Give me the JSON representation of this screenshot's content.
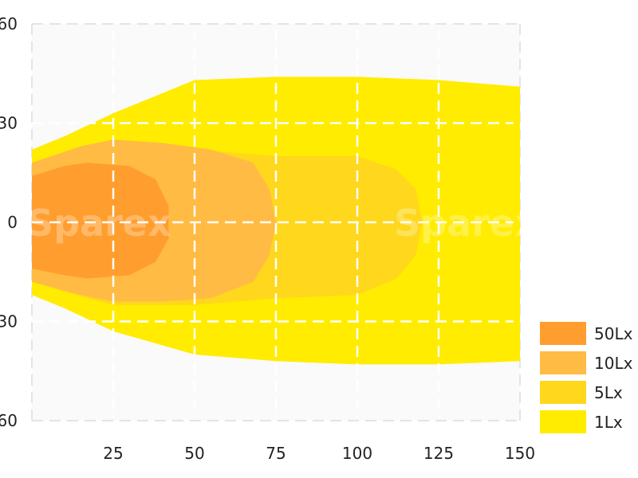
{
  "chart_data": {
    "type": "area",
    "title": "",
    "xlabel": "",
    "ylabel": "",
    "xlim": [
      0,
      150
    ],
    "ylim": [
      -60,
      60
    ],
    "x_ticks": [
      25,
      50,
      75,
      100,
      125,
      150
    ],
    "x_tick_labels": [
      "25",
      "50",
      "75",
      "100",
      "125",
      "150"
    ],
    "y_ticks": [
      60,
      30,
      0,
      -30,
      -60
    ],
    "y_tick_labels": [
      "60",
      "30",
      "0",
      "30",
      "60"
    ],
    "grid": true,
    "legend_position": "bottom-right",
    "watermark": "Sparex",
    "series": [
      {
        "name": "1Lx",
        "color": "#ffec00",
        "outline": [
          [
            0,
            22
          ],
          [
            10,
            26
          ],
          [
            25,
            33
          ],
          [
            50,
            43
          ],
          [
            75,
            44
          ],
          [
            100,
            44
          ],
          [
            125,
            43
          ],
          [
            150,
            41
          ],
          [
            150,
            -42
          ],
          [
            125,
            -43
          ],
          [
            100,
            -43
          ],
          [
            75,
            -42
          ],
          [
            50,
            -40
          ],
          [
            25,
            -33
          ],
          [
            10,
            -26
          ],
          [
            0,
            -22
          ]
        ]
      },
      {
        "name": "5Lx",
        "color": "#ffd71c",
        "outline": [
          [
            0,
            17
          ],
          [
            10,
            21
          ],
          [
            25,
            25
          ],
          [
            50,
            22
          ],
          [
            75,
            20
          ],
          [
            100,
            20
          ],
          [
            112,
            16
          ],
          [
            118,
            10
          ],
          [
            120,
            0
          ],
          [
            118,
            -10
          ],
          [
            112,
            -17
          ],
          [
            100,
            -22
          ],
          [
            75,
            -23
          ],
          [
            50,
            -25
          ],
          [
            25,
            -25
          ],
          [
            10,
            -21
          ],
          [
            0,
            -18
          ]
        ]
      },
      {
        "name": "10Lx",
        "color": "#ffbb44",
        "outline": [
          [
            0,
            18
          ],
          [
            15,
            23
          ],
          [
            25,
            25
          ],
          [
            40,
            24
          ],
          [
            55,
            22
          ],
          [
            68,
            18
          ],
          [
            73,
            10
          ],
          [
            75,
            0
          ],
          [
            73,
            -10
          ],
          [
            68,
            -18
          ],
          [
            55,
            -23
          ],
          [
            40,
            -24
          ],
          [
            25,
            -24
          ],
          [
            15,
            -22
          ],
          [
            0,
            -18
          ]
        ]
      },
      {
        "name": "50Lx",
        "color": "#ff9e2e",
        "outline": [
          [
            0,
            14
          ],
          [
            10,
            17
          ],
          [
            17,
            18
          ],
          [
            30,
            17
          ],
          [
            38,
            13
          ],
          [
            42,
            5
          ],
          [
            42,
            -5
          ],
          [
            38,
            -12
          ],
          [
            30,
            -16
          ],
          [
            17,
            -17
          ],
          [
            10,
            -16
          ],
          [
            0,
            -14
          ]
        ]
      }
    ]
  },
  "legend": [
    {
      "label": "50Lx",
      "color": "#ff9e2e"
    },
    {
      "label": "10Lx",
      "color": "#ffbb44"
    },
    {
      "label": "5Lx",
      "color": "#ffd71c"
    },
    {
      "label": "1Lx",
      "color": "#ffec00"
    }
  ]
}
